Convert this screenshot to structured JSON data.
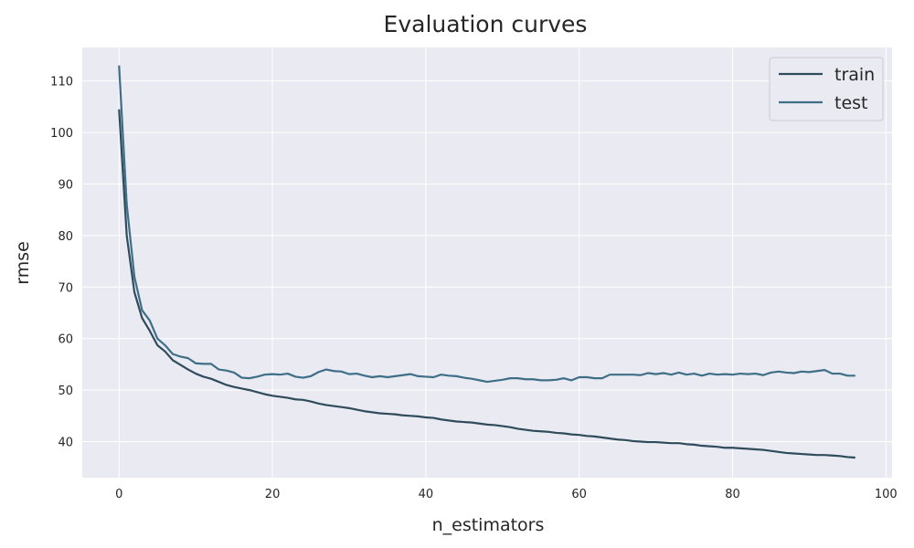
{
  "chart_data": {
    "type": "line",
    "title": "Evaluation curves",
    "xlabel": "n_estimators",
    "ylabel": "rmse",
    "xlim": [
      -4.8,
      100.8
    ],
    "ylim": [
      33,
      116.5
    ],
    "xticks": [
      0,
      20,
      40,
      60,
      80,
      100
    ],
    "yticks": [
      40,
      50,
      60,
      70,
      80,
      90,
      100,
      110
    ],
    "grid": true,
    "legend": "top-right",
    "background": "#eaeaf2",
    "series": [
      {
        "name": "train",
        "color": "#2f4b5c",
        "values": [
          104.5,
          80.0,
          69.0,
          64.0,
          61.5,
          58.7,
          57.5,
          55.8,
          54.9,
          54.0,
          53.2,
          52.6,
          52.2,
          51.6,
          51.0,
          50.6,
          50.3,
          50.0,
          49.6,
          49.2,
          48.9,
          48.7,
          48.5,
          48.2,
          48.1,
          47.8,
          47.4,
          47.1,
          46.9,
          46.7,
          46.5,
          46.2,
          45.9,
          45.7,
          45.5,
          45.4,
          45.3,
          45.1,
          45.0,
          44.9,
          44.7,
          44.6,
          44.3,
          44.1,
          43.9,
          43.8,
          43.7,
          43.5,
          43.3,
          43.2,
          43.0,
          42.8,
          42.5,
          42.3,
          42.1,
          42.0,
          41.9,
          41.7,
          41.6,
          41.4,
          41.3,
          41.1,
          41.0,
          40.8,
          40.6,
          40.4,
          40.3,
          40.1,
          40.0,
          39.9,
          39.9,
          39.8,
          39.7,
          39.7,
          39.5,
          39.4,
          39.2,
          39.1,
          39.0,
          38.8,
          38.8,
          38.7,
          38.6,
          38.5,
          38.4,
          38.2,
          38.0,
          37.8,
          37.7,
          37.6,
          37.5,
          37.4,
          37.4,
          37.3,
          37.2,
          37.0,
          36.9
        ]
      },
      {
        "name": "test",
        "color": "#3e6f87",
        "values": [
          113.0,
          86.0,
          72.0,
          65.5,
          63.5,
          60.0,
          58.7,
          57.0,
          56.5,
          56.2,
          55.2,
          55.1,
          55.1,
          54.0,
          53.8,
          53.4,
          52.4,
          52.3,
          52.6,
          53.0,
          53.1,
          53.0,
          53.2,
          52.6,
          52.4,
          52.7,
          53.5,
          54.0,
          53.7,
          53.6,
          53.1,
          53.2,
          52.8,
          52.5,
          52.7,
          52.5,
          52.7,
          52.9,
          53.1,
          52.7,
          52.6,
          52.5,
          53.0,
          52.8,
          52.7,
          52.4,
          52.2,
          51.9,
          51.6,
          51.8,
          52.0,
          52.3,
          52.3,
          52.1,
          52.1,
          51.9,
          51.9,
          52.0,
          52.3,
          51.9,
          52.5,
          52.5,
          52.3,
          52.3,
          53.0,
          53.0,
          53.0,
          53.0,
          52.9,
          53.3,
          53.1,
          53.3,
          53.0,
          53.4,
          53.0,
          53.2,
          52.8,
          53.2,
          53.0,
          53.1,
          53.0,
          53.2,
          53.1,
          53.2,
          52.9,
          53.4,
          53.6,
          53.4,
          53.3,
          53.6,
          53.5,
          53.7,
          53.9,
          53.2,
          53.2,
          52.8,
          52.8
        ]
      }
    ]
  }
}
